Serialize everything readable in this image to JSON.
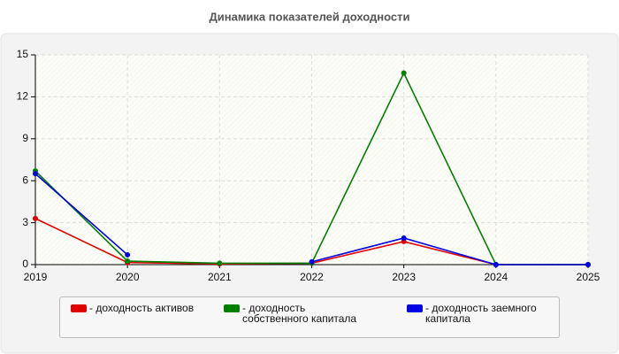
{
  "chart_data": {
    "type": "line",
    "title": "Динамика показателей доходности",
    "x": [
      2019,
      2020,
      2021,
      2022,
      2023,
      2024,
      2025
    ],
    "xlim": [
      2019,
      2025
    ],
    "xticks": [
      2019,
      2020,
      2021,
      2022,
      2023,
      2024,
      2025
    ],
    "ylim": [
      0,
      15
    ],
    "yticks": [
      0,
      3,
      6,
      9,
      12,
      15
    ],
    "grid": true,
    "legend": "bottom",
    "series": [
      {
        "name": "- доходность активов",
        "color": "#e00000",
        "values": [
          3.3,
          0.15,
          0.05,
          0.1,
          1.65,
          0,
          0
        ]
      },
      {
        "name": "- доходность собственного капитала",
        "color": "#008000",
        "values": [
          6.7,
          0.25,
          0.1,
          0.1,
          13.7,
          0,
          0
        ]
      },
      {
        "name": "- доходность заемного капитала",
        "color": "#0000e0",
        "values": [
          6.5,
          0.7,
          null,
          0.2,
          1.9,
          0,
          0
        ]
      }
    ]
  }
}
